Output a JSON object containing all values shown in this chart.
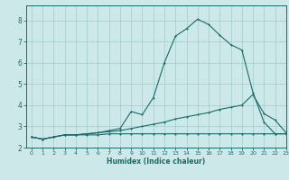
{
  "title": "",
  "xlabel": "Humidex (Indice chaleur)",
  "bg_color": "#cce8e8",
  "line_color": "#1a6b6b",
  "grid_color": "#aacfcf",
  "xlim": [
    -0.5,
    23
  ],
  "ylim": [
    2.0,
    8.7
  ],
  "yticks": [
    2,
    3,
    4,
    5,
    6,
    7,
    8
  ],
  "xticks": [
    0,
    1,
    2,
    3,
    4,
    5,
    6,
    7,
    8,
    9,
    10,
    11,
    12,
    13,
    14,
    15,
    16,
    17,
    18,
    19,
    20,
    21,
    22,
    23
  ],
  "line1_x": [
    0,
    1,
    2,
    3,
    4,
    5,
    6,
    7,
    8,
    9,
    10,
    11,
    12,
    13,
    14,
    15,
    16,
    17,
    18,
    19,
    20,
    21,
    22,
    23
  ],
  "line1_y": [
    2.5,
    2.4,
    2.5,
    2.6,
    2.6,
    2.6,
    2.6,
    2.65,
    2.65,
    2.65,
    2.65,
    2.65,
    2.65,
    2.65,
    2.65,
    2.65,
    2.65,
    2.65,
    2.65,
    2.65,
    2.65,
    2.65,
    2.65,
    2.65
  ],
  "line2_x": [
    0,
    1,
    2,
    3,
    4,
    5,
    6,
    7,
    8,
    9,
    10,
    11,
    12,
    13,
    14,
    15,
    16,
    17,
    18,
    19,
    20,
    21,
    22,
    23
  ],
  "line2_y": [
    2.5,
    2.4,
    2.5,
    2.6,
    2.6,
    2.65,
    2.7,
    2.75,
    2.8,
    2.9,
    3.0,
    3.1,
    3.2,
    3.35,
    3.45,
    3.55,
    3.65,
    3.8,
    3.9,
    4.0,
    4.5,
    3.6,
    3.3,
    2.7
  ],
  "line3_x": [
    0,
    1,
    2,
    3,
    4,
    5,
    6,
    7,
    8,
    9,
    10,
    11,
    12,
    13,
    14,
    15,
    16,
    17,
    18,
    19,
    20,
    21,
    22,
    23
  ],
  "line3_y": [
    2.5,
    2.4,
    2.5,
    2.6,
    2.6,
    2.65,
    2.7,
    2.8,
    2.9,
    3.7,
    3.55,
    4.35,
    6.0,
    7.25,
    7.6,
    8.05,
    7.8,
    7.3,
    6.85,
    6.6,
    4.6,
    3.2,
    2.65,
    2.65
  ]
}
